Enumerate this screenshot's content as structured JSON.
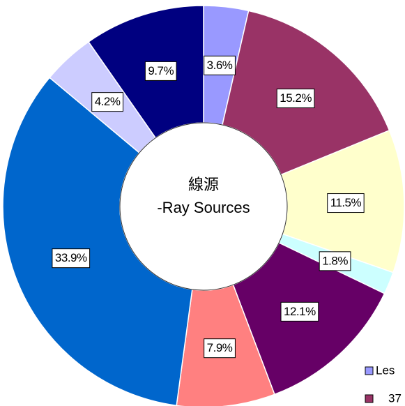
{
  "chart_data": {
    "type": "donut",
    "center_text": [
      "線源",
      "-Ray Sources"
    ],
    "values": [
      3.6,
      15.2,
      11.5,
      1.8,
      12.1,
      7.9,
      33.9,
      4.2,
      9.7
    ],
    "value_labels": [
      "3.6%",
      "15.2%",
      "11.5%",
      "1.8%",
      "12.1%",
      "7.9%",
      "33.9%",
      "4.2%",
      "9.7%"
    ],
    "colors": [
      "#9999ff",
      "#993366",
      "#ffffcc",
      "#ccffff",
      "#660066",
      "#ff8080",
      "#0066cc",
      "#ccccff",
      "#000080"
    ],
    "legend": [
      {
        "label": "Les",
        "color": "#9999ff"
      },
      {
        "label": "37",
        "color": "#993366"
      }
    ]
  }
}
